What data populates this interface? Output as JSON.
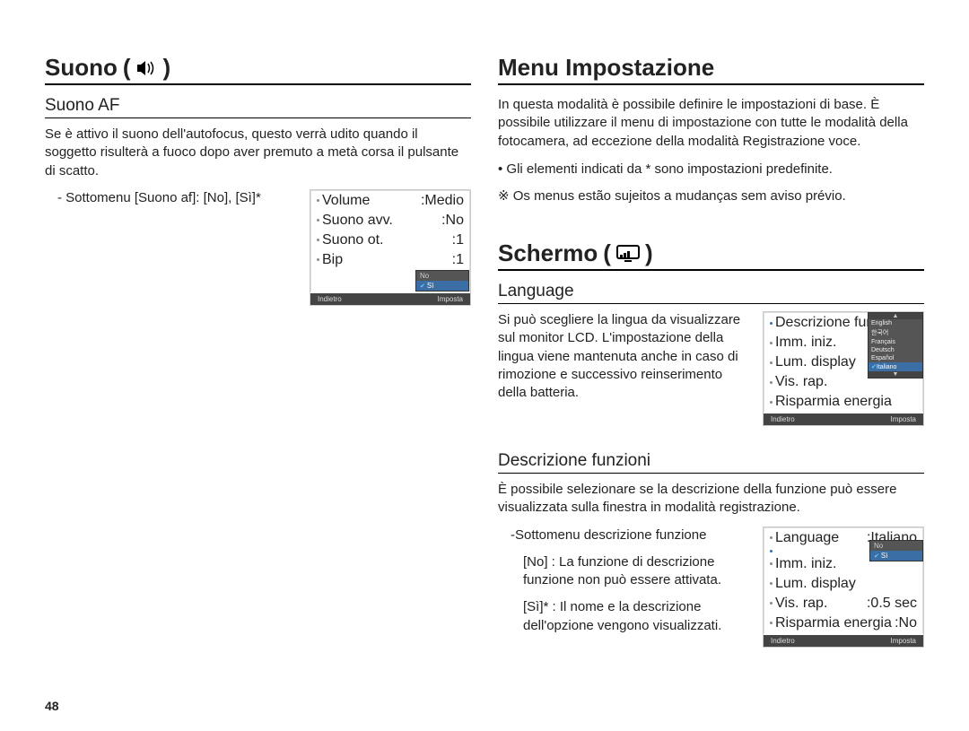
{
  "pageNumber": "48",
  "left": {
    "title": "Suono",
    "titleIcon": "speaker-icon",
    "sub1": {
      "heading": "Suono AF",
      "para": "Se è attivo il suono dell'autofocus, questo verrà udito quando il soggetto risulterà a fuoco dopo aver premuto a metà corsa il pulsante di scatto.",
      "submenuLine": "- Sottomenu [Suono af]: [No], [Sì]*"
    },
    "lcd1": {
      "rows": [
        {
          "label": "Volume",
          "value": ":Medio"
        },
        {
          "label": "Suono avv.",
          "value": ":No"
        },
        {
          "label": "Suono ot.",
          "value": ":1"
        },
        {
          "label": "Bip",
          "value": ":1"
        }
      ],
      "dropdown": [
        "No",
        "Sì"
      ],
      "dropdownSelected": 1,
      "footerLeft": "Indietro",
      "footerRight": "Imposta"
    }
  },
  "right": {
    "title1": "Menu Impostazione",
    "para1": "In questa modalità è possibile definire le impostazioni di base. È possibile utilizzare il menu di impostazione con tutte le modalità della fotocamera, ad eccezione della modalità Registrazione voce.",
    "bullet": "Gli elementi indicati da * sono impostazioni predefinite.",
    "note": "※ Os menus estão sujeitos a mudanças sem aviso prévio.",
    "title2": "Schermo",
    "title2Icon": "display-icon",
    "langSection": {
      "heading": "Language",
      "para": "Si può scegliere la lingua da visualizzare sul monitor LCD. L'impostazione della lingua viene mantenuta anche in caso di rimozione e successivo reinserimento della batteria."
    },
    "lcdLang": {
      "rows": [
        {
          "label": "Descrizione funzioni",
          "value": ""
        },
        {
          "label": "Imm. iniz.",
          "value": ""
        },
        {
          "label": "Lum. display",
          "value": ""
        },
        {
          "label": "Vis. rap.",
          "value": ""
        },
        {
          "label": "Risparmia energia",
          "value": ""
        }
      ],
      "options": [
        "English",
        "한국어",
        "Français",
        "Deutsch",
        "Español",
        "Italiano"
      ],
      "selected": 5,
      "footerLeft": "Indietro",
      "footerRight": "Imposta"
    },
    "descSection": {
      "heading": "Descrizione funzioni",
      "para": "È possibile selezionare se la descrizione della funzione può essere visualizzata sulla finestra in modalità registrazione.",
      "sub": "-Sottomenu descrizione funzione",
      "noLine": "[No] : La funzione di descrizione funzione non può essere attivata.",
      "siLine": "[Sì]* : Il nome e la descrizione dell'opzione vengono visualizzati."
    },
    "lcdDesc": {
      "rows": [
        {
          "label": "Language",
          "value": ":Italiano"
        },
        {
          "label": "",
          "value": ""
        },
        {
          "label": "Imm. iniz.",
          "value": ""
        },
        {
          "label": "Lum. display",
          "value": ""
        },
        {
          "label": "Vis. rap.",
          "value": ":0.5 sec"
        },
        {
          "label": "Risparmia energia",
          "value": ":No"
        }
      ],
      "dropdown": [
        "No",
        "Sì"
      ],
      "dropdownSelected": 1,
      "footerLeft": "Indietro",
      "footerRight": "Imposta"
    }
  }
}
